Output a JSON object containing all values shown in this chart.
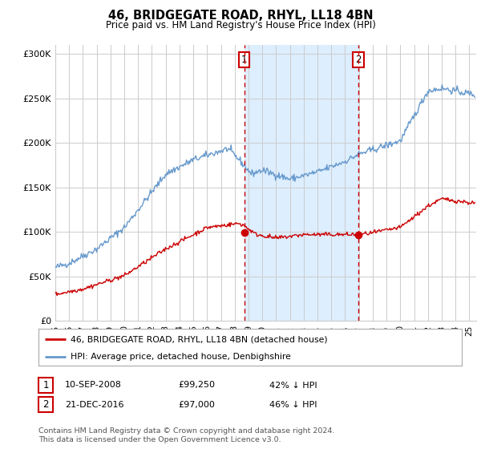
{
  "title": "46, BRIDGEGATE ROAD, RHYL, LL18 4BN",
  "subtitle": "Price paid vs. HM Land Registry's House Price Index (HPI)",
  "ylabel_ticks": [
    "£0",
    "£50K",
    "£100K",
    "£150K",
    "£200K",
    "£250K",
    "£300K"
  ],
  "ytick_vals": [
    0,
    50000,
    100000,
    150000,
    200000,
    250000,
    300000
  ],
  "ylim": [
    0,
    310000
  ],
  "xlim_start": 1995.0,
  "xlim_end": 2025.5,
  "hpi_color": "#6699cc",
  "price_color": "#cc0000",
  "marker1_date": 2008.69,
  "marker2_date": 2016.97,
  "marker1_price": 99250,
  "marker2_price": 97000,
  "shade_color": "#ddeeff",
  "vline_color": "#cc0000",
  "legend_label1": "46, BRIDGEGATE ROAD, RHYL, LL18 4BN (detached house)",
  "legend_label2": "HPI: Average price, detached house, Denbighshire",
  "table_row1": [
    "1",
    "10-SEP-2008",
    "£99,250",
    "42% ↓ HPI"
  ],
  "table_row2": [
    "2",
    "21-DEC-2016",
    "£97,000",
    "46% ↓ HPI"
  ],
  "footnote": "Contains HM Land Registry data © Crown copyright and database right 2024.\nThis data is licensed under the Open Government Licence v3.0.",
  "background_color": "#ffffff",
  "grid_color": "#cccccc"
}
